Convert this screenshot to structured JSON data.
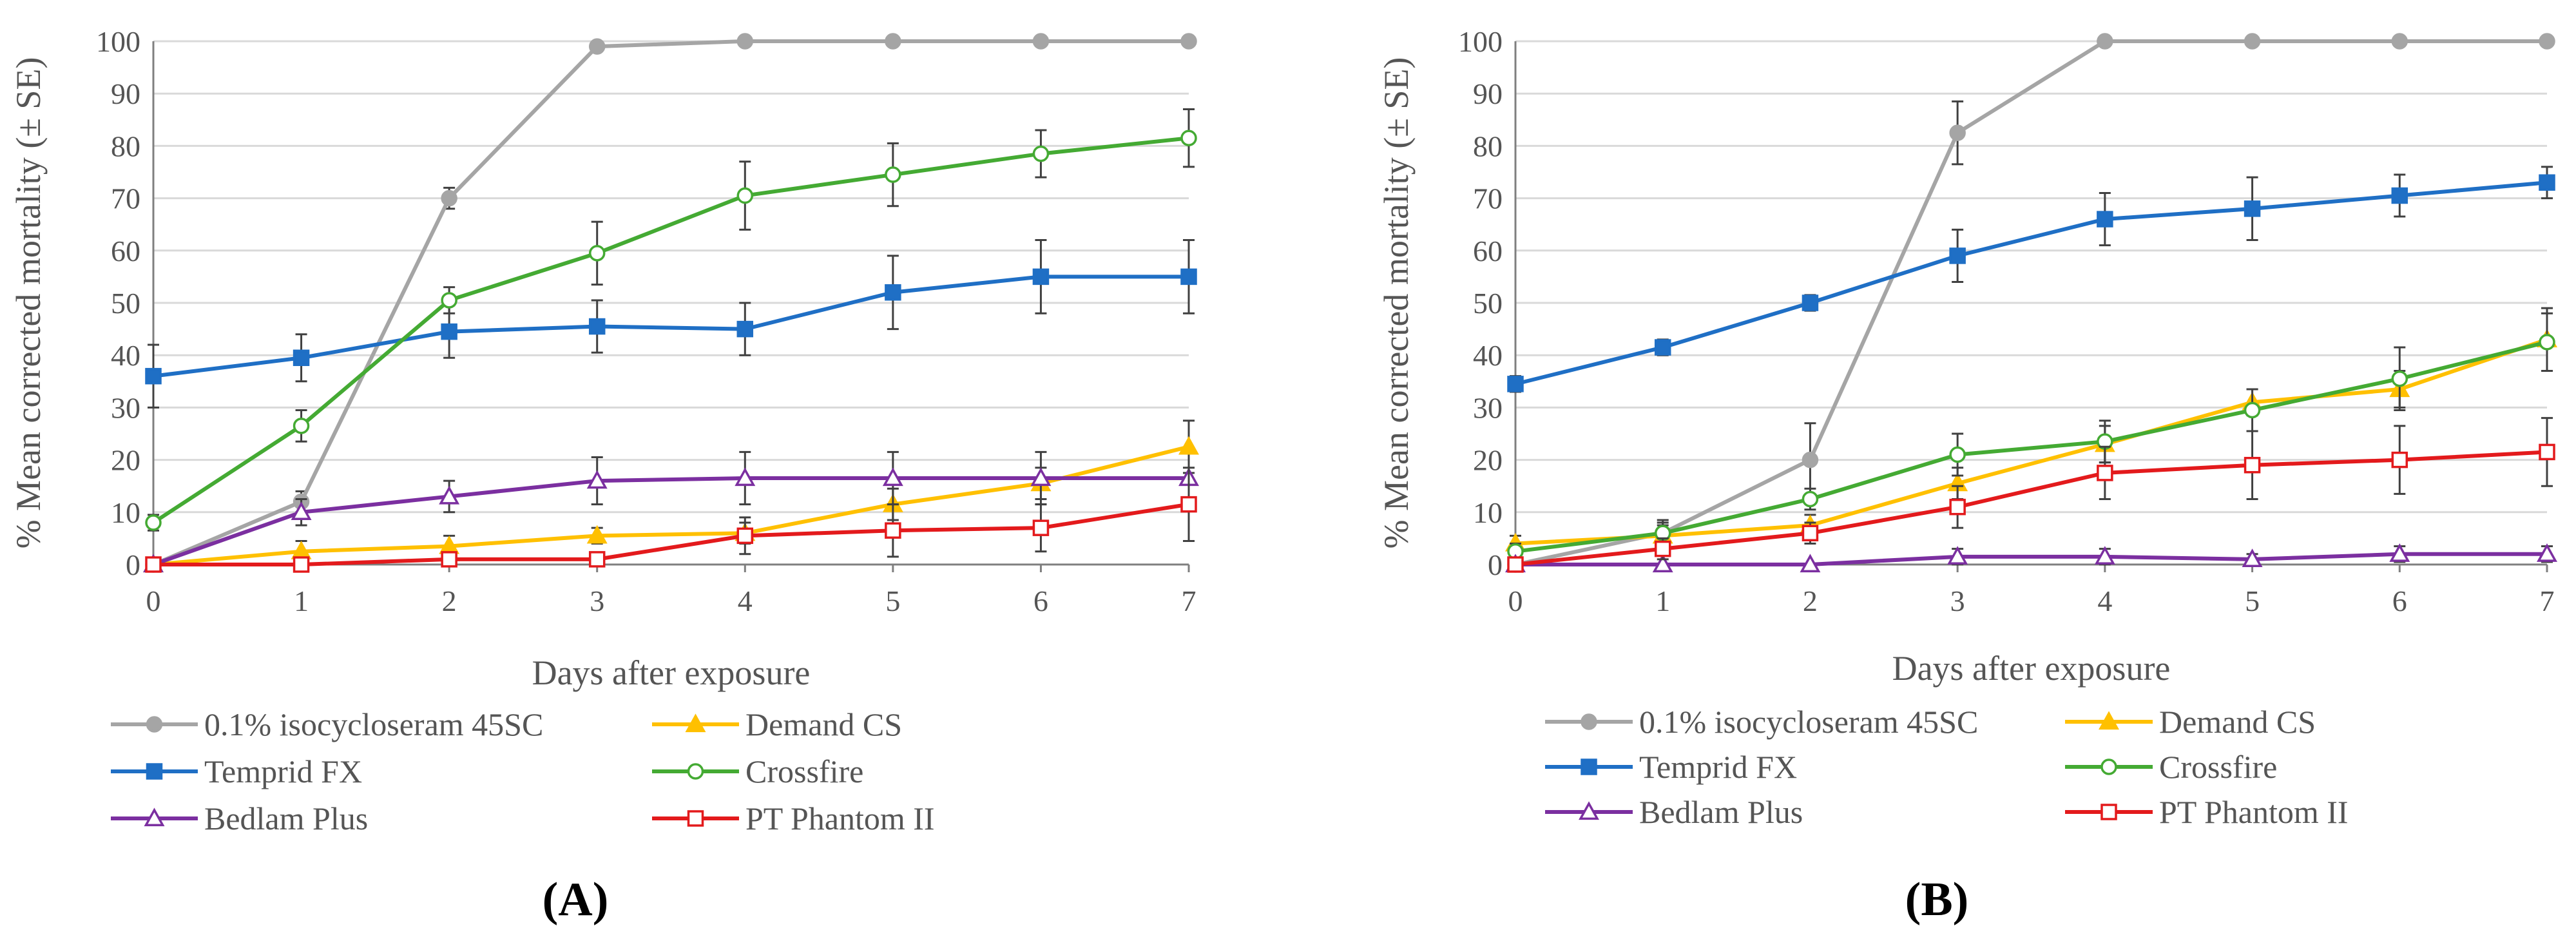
{
  "chart_data": [
    {
      "type": "line",
      "panel_label": "(A)",
      "xlabel": "Days after exposure",
      "ylabel": "% Mean corrected mortality (± SE)",
      "x": [
        0,
        1,
        2,
        3,
        4,
        5,
        6,
        7
      ],
      "xlim": [
        0,
        7
      ],
      "ylim": [
        0,
        100
      ],
      "yticks": [
        0,
        10,
        20,
        30,
        40,
        50,
        60,
        70,
        80,
        90,
        100
      ],
      "grid": "horizontal",
      "legend_position": "bottom",
      "series": [
        {
          "name": "0.1% isocycloseram 45SC",
          "color": "#A5A5A5",
          "marker": "circle-filled",
          "values": [
            0,
            12,
            70,
            99,
            100,
            100,
            100,
            100
          ],
          "se": [
            0,
            2,
            2,
            0,
            0,
            0,
            0,
            0
          ]
        },
        {
          "name": "Demand CS",
          "color": "#FFC000",
          "marker": "triangle-filled",
          "values": [
            0,
            2.5,
            3.5,
            5.5,
            6,
            11.5,
            15.5,
            22.5
          ],
          "se": [
            0,
            2,
            2,
            1.5,
            2,
            3,
            3,
            5
          ]
        },
        {
          "name": "Temprid FX",
          "color": "#1F6FC5",
          "marker": "square-filled",
          "values": [
            36,
            39.5,
            44.5,
            45.5,
            45,
            52,
            55,
            55
          ],
          "se": [
            6,
            4.5,
            5,
            5,
            5,
            7,
            7,
            7
          ]
        },
        {
          "name": "Crossfire",
          "color": "#44AA33",
          "marker": "circle-open",
          "values": [
            8,
            26.5,
            50.5,
            59.5,
            70.5,
            74.5,
            78.5,
            81.5
          ],
          "se": [
            1.5,
            3,
            2.5,
            6,
            6.5,
            6,
            4.5,
            5.5
          ]
        },
        {
          "name": "Bedlam Plus",
          "color": "#7B2FA0",
          "marker": "triangle-open",
          "values": [
            0,
            10,
            13,
            16,
            16.5,
            16.5,
            16.5,
            16.5
          ],
          "se": [
            0,
            2.5,
            3,
            4.5,
            5,
            5,
            5,
            0
          ]
        },
        {
          "name": "PT Phantom II",
          "color": "#E31A1C",
          "marker": "square-open",
          "values": [
            0,
            0,
            1,
            1,
            5.5,
            6.5,
            7,
            11.5
          ],
          "se": [
            0,
            0,
            1,
            1,
            3.5,
            5,
            4.5,
            7
          ]
        }
      ]
    },
    {
      "type": "line",
      "panel_label": "(B)",
      "xlabel": "Days after exposure",
      "ylabel": "% Mean corrected mortality (± SE)",
      "x": [
        0,
        1,
        2,
        3,
        4,
        5,
        6,
        7
      ],
      "xlim": [
        0,
        7
      ],
      "ylim": [
        0,
        100
      ],
      "yticks": [
        0,
        10,
        20,
        30,
        40,
        50,
        60,
        70,
        80,
        90,
        100
      ],
      "grid": "horizontal",
      "legend_position": "bottom",
      "series": [
        {
          "name": "0.1% isocycloseram 45SC",
          "color": "#A5A5A5",
          "marker": "circle-filled",
          "values": [
            0,
            6,
            20,
            82.5,
            100,
            100,
            100,
            100
          ],
          "se": [
            0,
            2,
            7,
            6,
            0,
            0,
            0,
            0
          ]
        },
        {
          "name": "Demand CS",
          "color": "#FFC000",
          "marker": "triangle-filled",
          "values": [
            4,
            5.5,
            7.5,
            15.5,
            23,
            31,
            33.5,
            43
          ],
          "se": [
            1.5,
            2,
            2,
            3,
            3.5,
            2.5,
            3.5,
            6
          ]
        },
        {
          "name": "Temprid FX",
          "color": "#1F6FC5",
          "marker": "square-filled",
          "values": [
            34.5,
            41.5,
            50,
            59,
            66,
            68,
            70.5,
            73
          ],
          "se": [
            1.5,
            1.5,
            1.5,
            5,
            5,
            6,
            4,
            3
          ]
        },
        {
          "name": "Crossfire",
          "color": "#44AA33",
          "marker": "circle-open",
          "values": [
            2.5,
            6,
            12.5,
            21,
            23.5,
            29.5,
            35.5,
            42.5
          ],
          "se": [
            1.5,
            2.5,
            2,
            4,
            4,
            4,
            6,
            5.5
          ]
        },
        {
          "name": "Bedlam Plus",
          "color": "#7B2FA0",
          "marker": "triangle-open",
          "values": [
            0,
            0,
            0,
            1.5,
            1.5,
            1,
            2,
            2
          ],
          "se": [
            0,
            0,
            0,
            1.5,
            1.5,
            1,
            1.5,
            1.5
          ]
        },
        {
          "name": "PT Phantom II",
          "color": "#E31A1C",
          "marker": "square-open",
          "values": [
            0,
            3,
            6,
            11,
            17.5,
            19,
            20,
            21.5
          ],
          "se": [
            0,
            2,
            2,
            4,
            5,
            6.5,
            6.5,
            6.5
          ]
        }
      ]
    }
  ]
}
